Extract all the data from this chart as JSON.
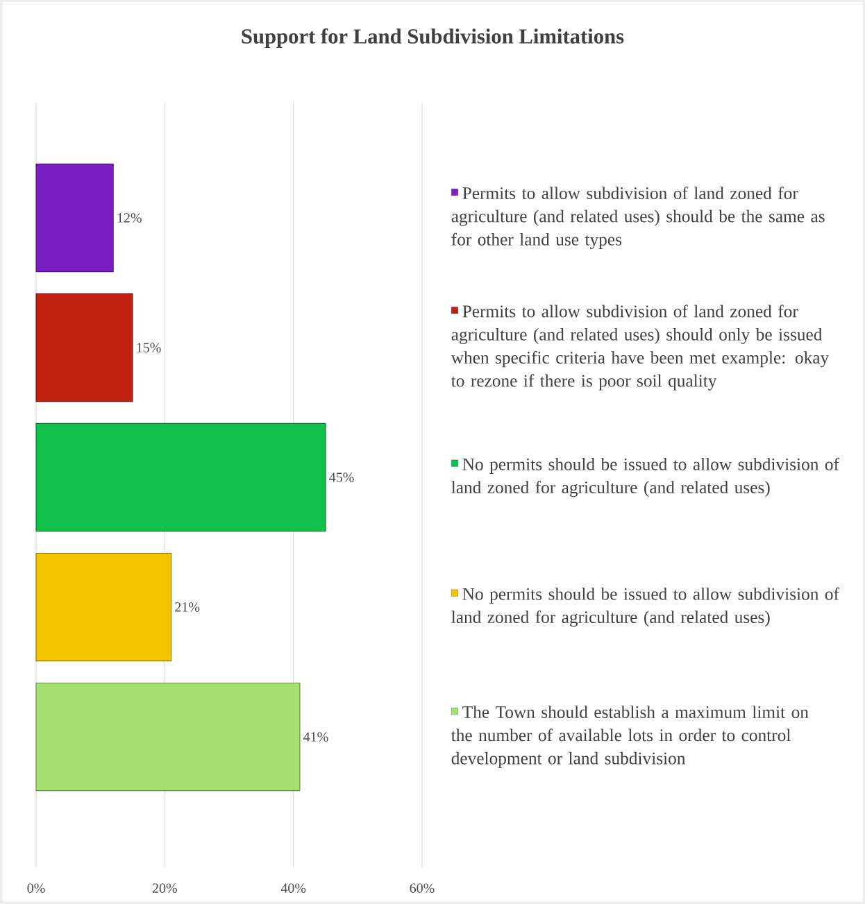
{
  "chart_data": {
    "type": "bar",
    "orientation": "horizontal",
    "title": "Support for Land Subdivision Limitations",
    "categories": [
      null
    ],
    "series": [
      {
        "name": "Permits to allow subdivision of land zoned for agriculture (and related uses) should be the same as for other land use types",
        "color": "#7a1fc2",
        "values": [
          12
        ],
        "value_labels": [
          "12%"
        ]
      },
      {
        "name": "Permits to allow subdivision of land zoned for agriculture (and related uses) should only be issued when specific criteria have been met  example: okay to rezone if there is poor soil quality",
        "color": "#c0200f",
        "values": [
          15
        ],
        "value_labels": [
          "15%"
        ]
      },
      {
        "name": "No permits should be issued to allow subdivision of land zoned for agriculture (and related uses)",
        "color": "#10c04a",
        "values": [
          45
        ],
        "value_labels": [
          "45%"
        ]
      },
      {
        "name": "No permits should be issued to allow subdivision of land zoned for agriculture (and related uses)",
        "color": "#f5c400",
        "values": [
          21
        ],
        "value_labels": [
          "21%"
        ]
      },
      {
        "name": "The Town should establish a maximum limit on the number of available lots in order to control development or land subdivision",
        "color": "#a6e070",
        "values": [
          41
        ],
        "value_labels": [
          "41%"
        ]
      }
    ],
    "xlim": [
      0,
      60
    ],
    "xticks": [
      {
        "value": 0,
        "label": "0%"
      },
      {
        "value": 20,
        "label": "20%"
      },
      {
        "value": 40,
        "label": "40%"
      },
      {
        "value": 60,
        "label": "60%"
      }
    ],
    "grid": "x",
    "legend": "right"
  }
}
